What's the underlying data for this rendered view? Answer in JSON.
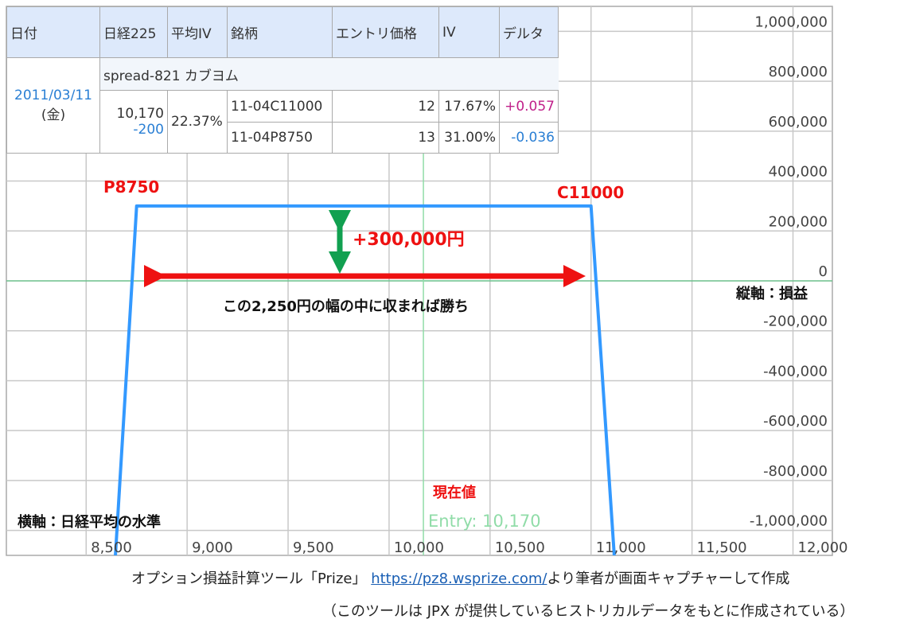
{
  "chart_data": {
    "type": "line",
    "x": [
      8645,
      8750,
      11000,
      11115
    ],
    "series": [
      {
        "color": "#3399ff",
        "values": [
          -1100000,
          300000,
          300000,
          -1100000
        ]
      }
    ],
    "xlim": [
      8105,
      12195
    ],
    "xticks": [
      {
        "value": 8500,
        "label": "8,500"
      },
      {
        "value": 9000,
        "label": "9,000"
      },
      {
        "value": 9500,
        "label": "9,500"
      },
      {
        "value": 10000,
        "label": "10,000"
      },
      {
        "value": 10500,
        "label": "10,500"
      },
      {
        "value": 11000,
        "label": "11,000"
      },
      {
        "value": 11500,
        "label": "11,500"
      },
      {
        "value": 12000,
        "label": "12,000"
      }
    ],
    "ylim": [
      -1100000,
      1100000
    ],
    "yticks": [
      {
        "value": 1000000,
        "label": "1,000,000"
      },
      {
        "value": 800000,
        "label": "800,000"
      },
      {
        "value": 600000,
        "label": "600,000"
      },
      {
        "value": 400000,
        "label": "400,000"
      },
      {
        "value": 200000,
        "label": "200,000"
      },
      0,
      {
        "value": -200000,
        "label": "-200,000"
      },
      {
        "value": -400000,
        "label": "-400,000"
      },
      {
        "value": -600000,
        "label": "-600,000"
      },
      {
        "value": -800000,
        "label": "-800,000"
      },
      {
        "value": -1000000,
        "label": "-1,000,000"
      }
    ],
    "grid": true,
    "entry": {
      "value": 10170,
      "label": "Entry: 10,170"
    },
    "annotations": {
      "put": "P8750",
      "call": "C11000",
      "profit": "+300,000円",
      "range": "この2,250円の幅の中に収まれば勝ち",
      "y_axis": "縦軸：損益",
      "x_axis": "横軸：日経平均の水準",
      "current": "現在値"
    }
  },
  "table": {
    "header": [
      "日付",
      "日経225",
      "平均IV",
      "銘柄",
      "エントリ価格",
      "IV",
      "デルタ"
    ],
    "date": "2011/03/11",
    "weekday": "(金)",
    "strategy": "spread-821 カブヨム",
    "nikkei": "10,170",
    "nikkei_change": "-200",
    "avg_iv": "22.37%",
    "legs": [
      [
        "11-04C11000",
        "12",
        "17.67%",
        "+0.057"
      ],
      [
        "11-04P8750",
        "13",
        "31.00%",
        "-0.036"
      ]
    ]
  },
  "caption": {
    "prefix": "オプション損益計算ツール「Prize」",
    "link": "https://pz8.wsprize.com/",
    "suffix": "より筆者が画面キャプチャーして作成",
    "note": "（このツールは JPX が提供しているヒストリカルデータをもとに作成されている）"
  }
}
